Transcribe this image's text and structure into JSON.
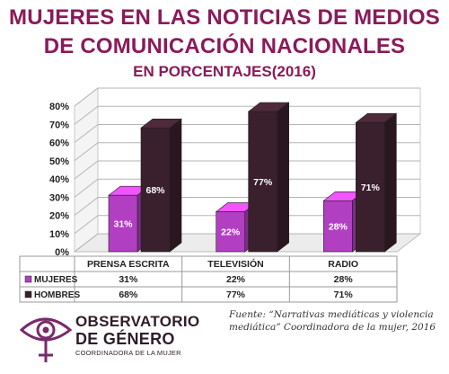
{
  "title": {
    "line1": "MUJERES EN LAS NOTICIAS DE MEDIOS",
    "line2": "DE COMUNICACIÓN NACIONALES",
    "line3": "EN PORCENTAJES(2016)"
  },
  "chart_data": {
    "type": "bar",
    "categories": [
      "PRENSA ESCRITA",
      "TELEVISIÓN",
      "RADIO"
    ],
    "series": [
      {
        "name": "MUJERES",
        "values": [
          31,
          22,
          28
        ],
        "labels": [
          "31%",
          "22%",
          "28%"
        ],
        "color": "#b23fc2"
      },
      {
        "name": "HOMBRES",
        "values": [
          68,
          77,
          71
        ],
        "labels": [
          "68%",
          "77%",
          "71%"
        ],
        "color": "#3a1f2c"
      }
    ],
    "ylim": [
      0,
      80
    ],
    "yticks": [
      "0%",
      "10%",
      "20%",
      "30%",
      "40%",
      "50%",
      "60%",
      "70%",
      "80%"
    ],
    "grid": true,
    "legend": "data-table-below"
  },
  "source": {
    "line1": "Fuente: “Narrativas mediáticas y violencia",
    "line2": "mediática” Coordinadora de la mujer, 2016"
  },
  "logo": {
    "line1": "OBSERVATORIO",
    "line2": "DE GÉNERO",
    "sub": "COORDINADORA DE LA MUJER"
  },
  "colors": {
    "title": "#8a1a5a",
    "mujeres": "#b23fc2",
    "hombres": "#3a1f2c"
  }
}
